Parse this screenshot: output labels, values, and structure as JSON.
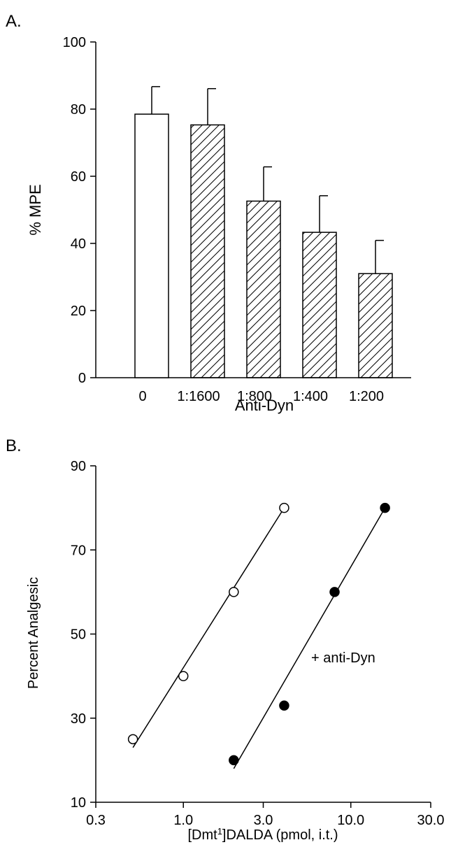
{
  "chart_data": [
    {
      "panel_label": "A.",
      "type": "bar",
      "xlabel": "Anti-Dyn",
      "ylabel": "% MPE",
      "ylim": [
        0,
        100
      ],
      "yticks": [
        "0",
        "20",
        "40",
        "60",
        "80",
        "100"
      ],
      "categories": [
        "0",
        "1:1600",
        "1:800",
        "1:400",
        "1:200"
      ],
      "values": [
        78.5,
        75.3,
        52.6,
        43.3,
        31.0
      ],
      "errors": [
        8.2,
        10.8,
        10.2,
        10.9,
        9.9
      ],
      "fills": [
        "open",
        "hatched",
        "hatched",
        "hatched",
        "hatched"
      ]
    },
    {
      "panel_label": "B.",
      "type": "scatter",
      "xlabel_prefix": "[Dmt",
      "xlabel_sup": "1",
      "xlabel_suffix": "]DALDA (pmol, i.t.)",
      "ylabel": "Percent Analgesic",
      "xscale": "log",
      "xlim": [
        0.3,
        30.0
      ],
      "ylim": [
        10,
        90
      ],
      "xticks": [
        {
          "value": 0.3,
          "label": "0.3"
        },
        {
          "value": 1.0,
          "label": "1.0"
        },
        {
          "value": 3.0,
          "label": "3.0"
        },
        {
          "value": 10.0,
          "label": "10.0"
        },
        {
          "value": 30.0,
          "label": "30.0"
        }
      ],
      "yticks": [
        {
          "value": 10,
          "label": "10"
        },
        {
          "value": 30,
          "label": "30"
        },
        {
          "value": 50,
          "label": "50"
        },
        {
          "value": 70,
          "label": "70"
        },
        {
          "value": 90,
          "label": "90"
        }
      ],
      "series": [
        {
          "marker": "open-circle",
          "x": [
            0.5,
            1.0,
            2.0,
            4.0
          ],
          "y": [
            25,
            40,
            60,
            80
          ],
          "fit": {
            "x": [
              0.5,
              4.0
            ],
            "y": [
              23,
              80
            ]
          }
        },
        {
          "marker": "filled-circle",
          "label": "+ anti-Dyn",
          "x": [
            2.0,
            4.0,
            8.0,
            16.0
          ],
          "y": [
            20,
            33,
            60,
            80
          ],
          "fit": {
            "x": [
              2.0,
              16.0
            ],
            "y": [
              18,
              80
            ]
          }
        }
      ]
    }
  ]
}
